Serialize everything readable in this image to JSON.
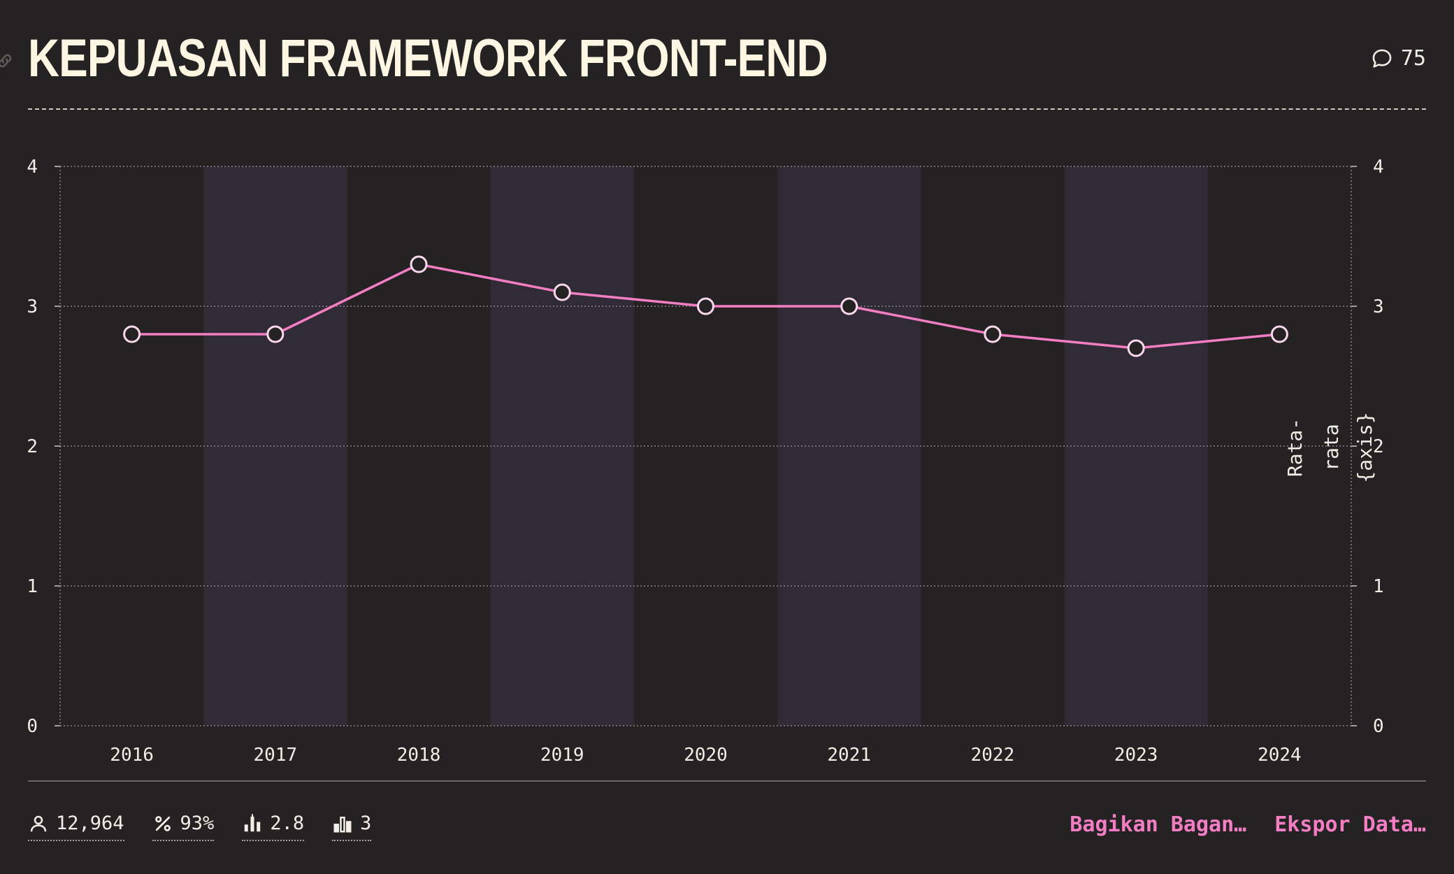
{
  "header": {
    "title": "KEPUASAN FRAMEWORK FRONT-END",
    "comment_count": "75"
  },
  "chart_data": {
    "type": "line",
    "x": [
      "2016",
      "2017",
      "2018",
      "2019",
      "2020",
      "2021",
      "2022",
      "2023",
      "2024"
    ],
    "series": [
      {
        "values": [
          2.8,
          2.8,
          3.3,
          3.1,
          3.0,
          3.0,
          2.8,
          2.7,
          2.8
        ]
      }
    ],
    "y_ticks": [
      "0",
      "1",
      "2",
      "3",
      "4"
    ],
    "ylim": [
      0,
      4
    ],
    "y2label": "Rata-rata {axis}",
    "grid": true,
    "colors": {
      "line": "#f47ec4",
      "marker_fill": "#252224",
      "marker_stroke": "#f9d8ec",
      "band": "#302b36",
      "grid": "#8a8585"
    }
  },
  "footer": {
    "stats": [
      {
        "icon": "person-icon",
        "value": "12,964"
      },
      {
        "icon": "percent-icon",
        "value": "93%"
      },
      {
        "icon": "bar-chart-icon",
        "value": "2.8"
      },
      {
        "icon": "bar-chart-outline-icon",
        "value": "3"
      }
    ],
    "actions": [
      {
        "label": "Bagikan Bagan…"
      },
      {
        "label": "Ekspor Data…"
      }
    ]
  }
}
